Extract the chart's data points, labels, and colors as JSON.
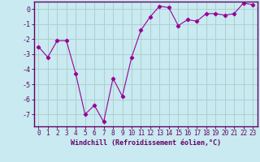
{
  "x": [
    0,
    1,
    2,
    3,
    4,
    5,
    6,
    7,
    8,
    9,
    10,
    11,
    12,
    13,
    14,
    15,
    16,
    17,
    18,
    19,
    20,
    21,
    22,
    23
  ],
  "y": [
    -2.5,
    -3.2,
    -2.1,
    -2.1,
    -4.3,
    -7.0,
    -6.4,
    -7.5,
    -4.6,
    -5.8,
    -3.2,
    -1.4,
    -0.5,
    0.2,
    0.1,
    -1.1,
    -0.7,
    -0.8,
    -0.3,
    -0.3,
    -0.4,
    -0.3,
    0.4,
    0.3
  ],
  "line_color": "#990099",
  "marker": "D",
  "marker_size": 2.2,
  "bg_color": "#c8eaf0",
  "grid_color": "#aacccc",
  "axis_color": "#660066",
  "border_color": "#660066",
  "xlabel": "Windchill (Refroidissement éolien,°C)",
  "ylim": [
    -7.8,
    0.5
  ],
  "xlim": [
    -0.5,
    23.5
  ],
  "yticks": [
    0,
    -1,
    -2,
    -3,
    -4,
    -5,
    -6,
    -7
  ],
  "ytick_labels": [
    "0",
    "-1",
    "-2",
    "-3",
    "-4",
    "-5",
    "-6",
    "-7"
  ],
  "xticks": [
    0,
    1,
    2,
    3,
    4,
    5,
    6,
    7,
    8,
    9,
    10,
    11,
    12,
    13,
    14,
    15,
    16,
    17,
    18,
    19,
    20,
    21,
    22,
    23
  ],
  "font_color": "#660066",
  "tick_fontsize": 5.5,
  "xlabel_fontsize": 6.0,
  "ytick_fontsize": 6.0
}
